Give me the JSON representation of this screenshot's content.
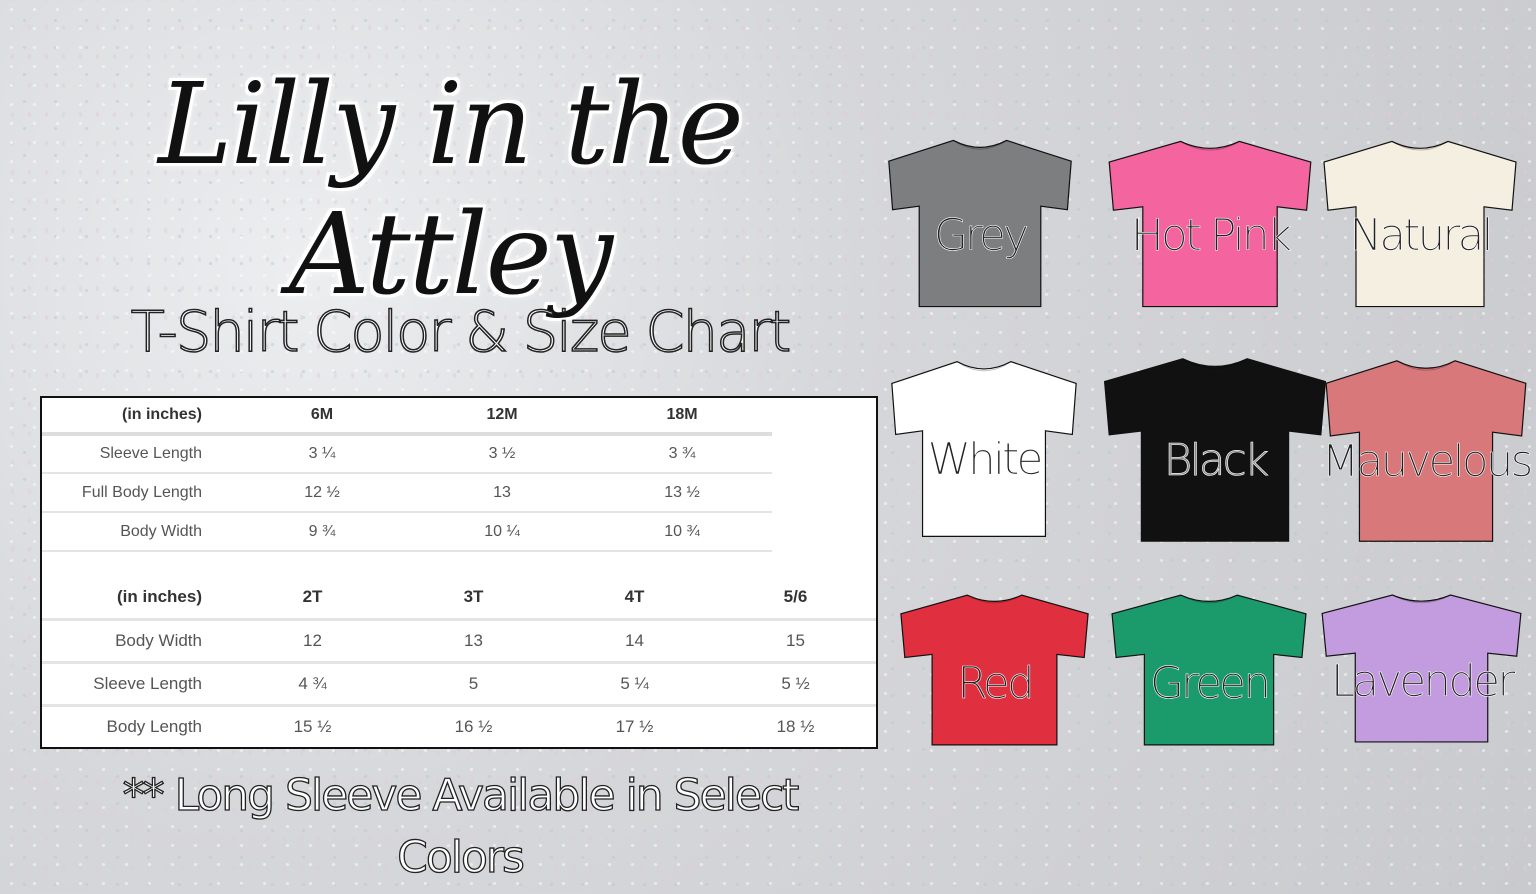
{
  "brand": "Lilly in the Attley",
  "subtitle": "T-Shirt Color & Size Chart",
  "size_table_infant": {
    "headers": [
      "(in inches)",
      "6M",
      "12M",
      "18M"
    ],
    "rows": [
      [
        "Sleeve Length",
        "3 ¼",
        "3 ½",
        "3 ¾"
      ],
      [
        "Full Body Length",
        "12 ½",
        "13",
        "13 ½"
      ],
      [
        "Body Width",
        "9 ¾",
        "10 ¼",
        "10 ¾"
      ]
    ]
  },
  "size_table_toddler": {
    "headers": [
      "(in inches)",
      "2T",
      "3T",
      "4T",
      "5/6"
    ],
    "rows": [
      [
        "Body Width",
        "12",
        "13",
        "14",
        "15"
      ],
      [
        "Sleeve Length",
        "4 ¾",
        "5",
        "5 ¼",
        "5 ½"
      ],
      [
        "Body Length",
        "15 ½",
        "16 ½",
        "17 ½",
        "18 ½"
      ]
    ]
  },
  "note": "** Long Sleeve Available in Select Colors",
  "colors": [
    {
      "name": "Grey",
      "hex": "#7d7e80",
      "text": "#222"
    },
    {
      "name": "Hot Pink",
      "hex": "#f4649e",
      "text": "#222"
    },
    {
      "name": "Natural",
      "hex": "#f5efe1",
      "text": "#222"
    },
    {
      "name": "White",
      "hex": "#ffffff",
      "text": "#222"
    },
    {
      "name": "Black",
      "hex": "#111111",
      "text": "#888"
    },
    {
      "name": "Mauvelous",
      "hex": "#d8787b",
      "text": "#222"
    },
    {
      "name": "Red",
      "hex": "#e0303f",
      "text": "#222"
    },
    {
      "name": "Green",
      "hex": "#1b9a6c",
      "text": "#222"
    },
    {
      "name": "Lavender",
      "hex": "#c39ce0",
      "text": "#222"
    }
  ]
}
